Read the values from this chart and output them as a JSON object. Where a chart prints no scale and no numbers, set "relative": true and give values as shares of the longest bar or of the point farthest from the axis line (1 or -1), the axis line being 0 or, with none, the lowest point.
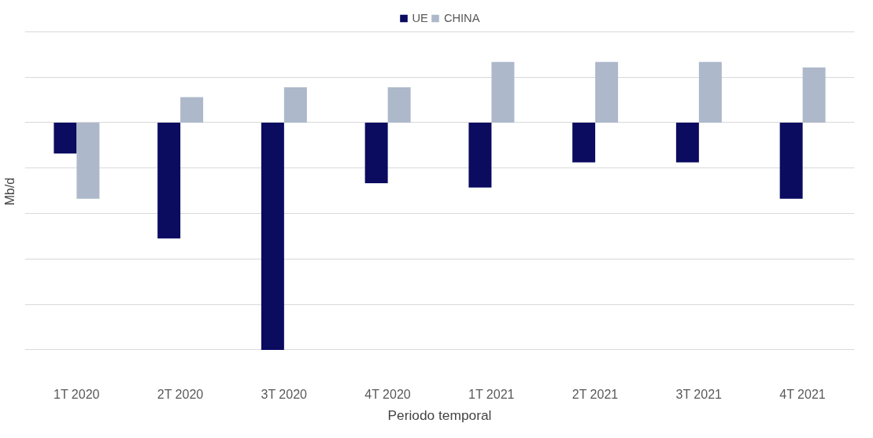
{
  "chart_data": {
    "type": "bar",
    "relative": true,
    "xlabel": "Periodo temporal",
    "ylabel": "Mb/d",
    "categories": [
      "1T 2020",
      "2T 2020",
      "3T 2020",
      "4T 2020",
      "1T 2021",
      "2T 2021",
      "3T 2021",
      "4T 2021"
    ],
    "series": [
      {
        "name": "UE",
        "color": "#0b0b60",
        "values": [
          -0.136,
          -0.51,
          -1,
          -0.267,
          -0.286,
          -0.175,
          -0.175,
          -0.335
        ]
      },
      {
        "name": "CHINA",
        "color": "#adb9ca",
        "values": [
          -0.335,
          0.112,
          0.155,
          0.155,
          0.267,
          0.267,
          0.267,
          0.243
        ]
      }
    ],
    "grid": "y",
    "legend": "top"
  }
}
